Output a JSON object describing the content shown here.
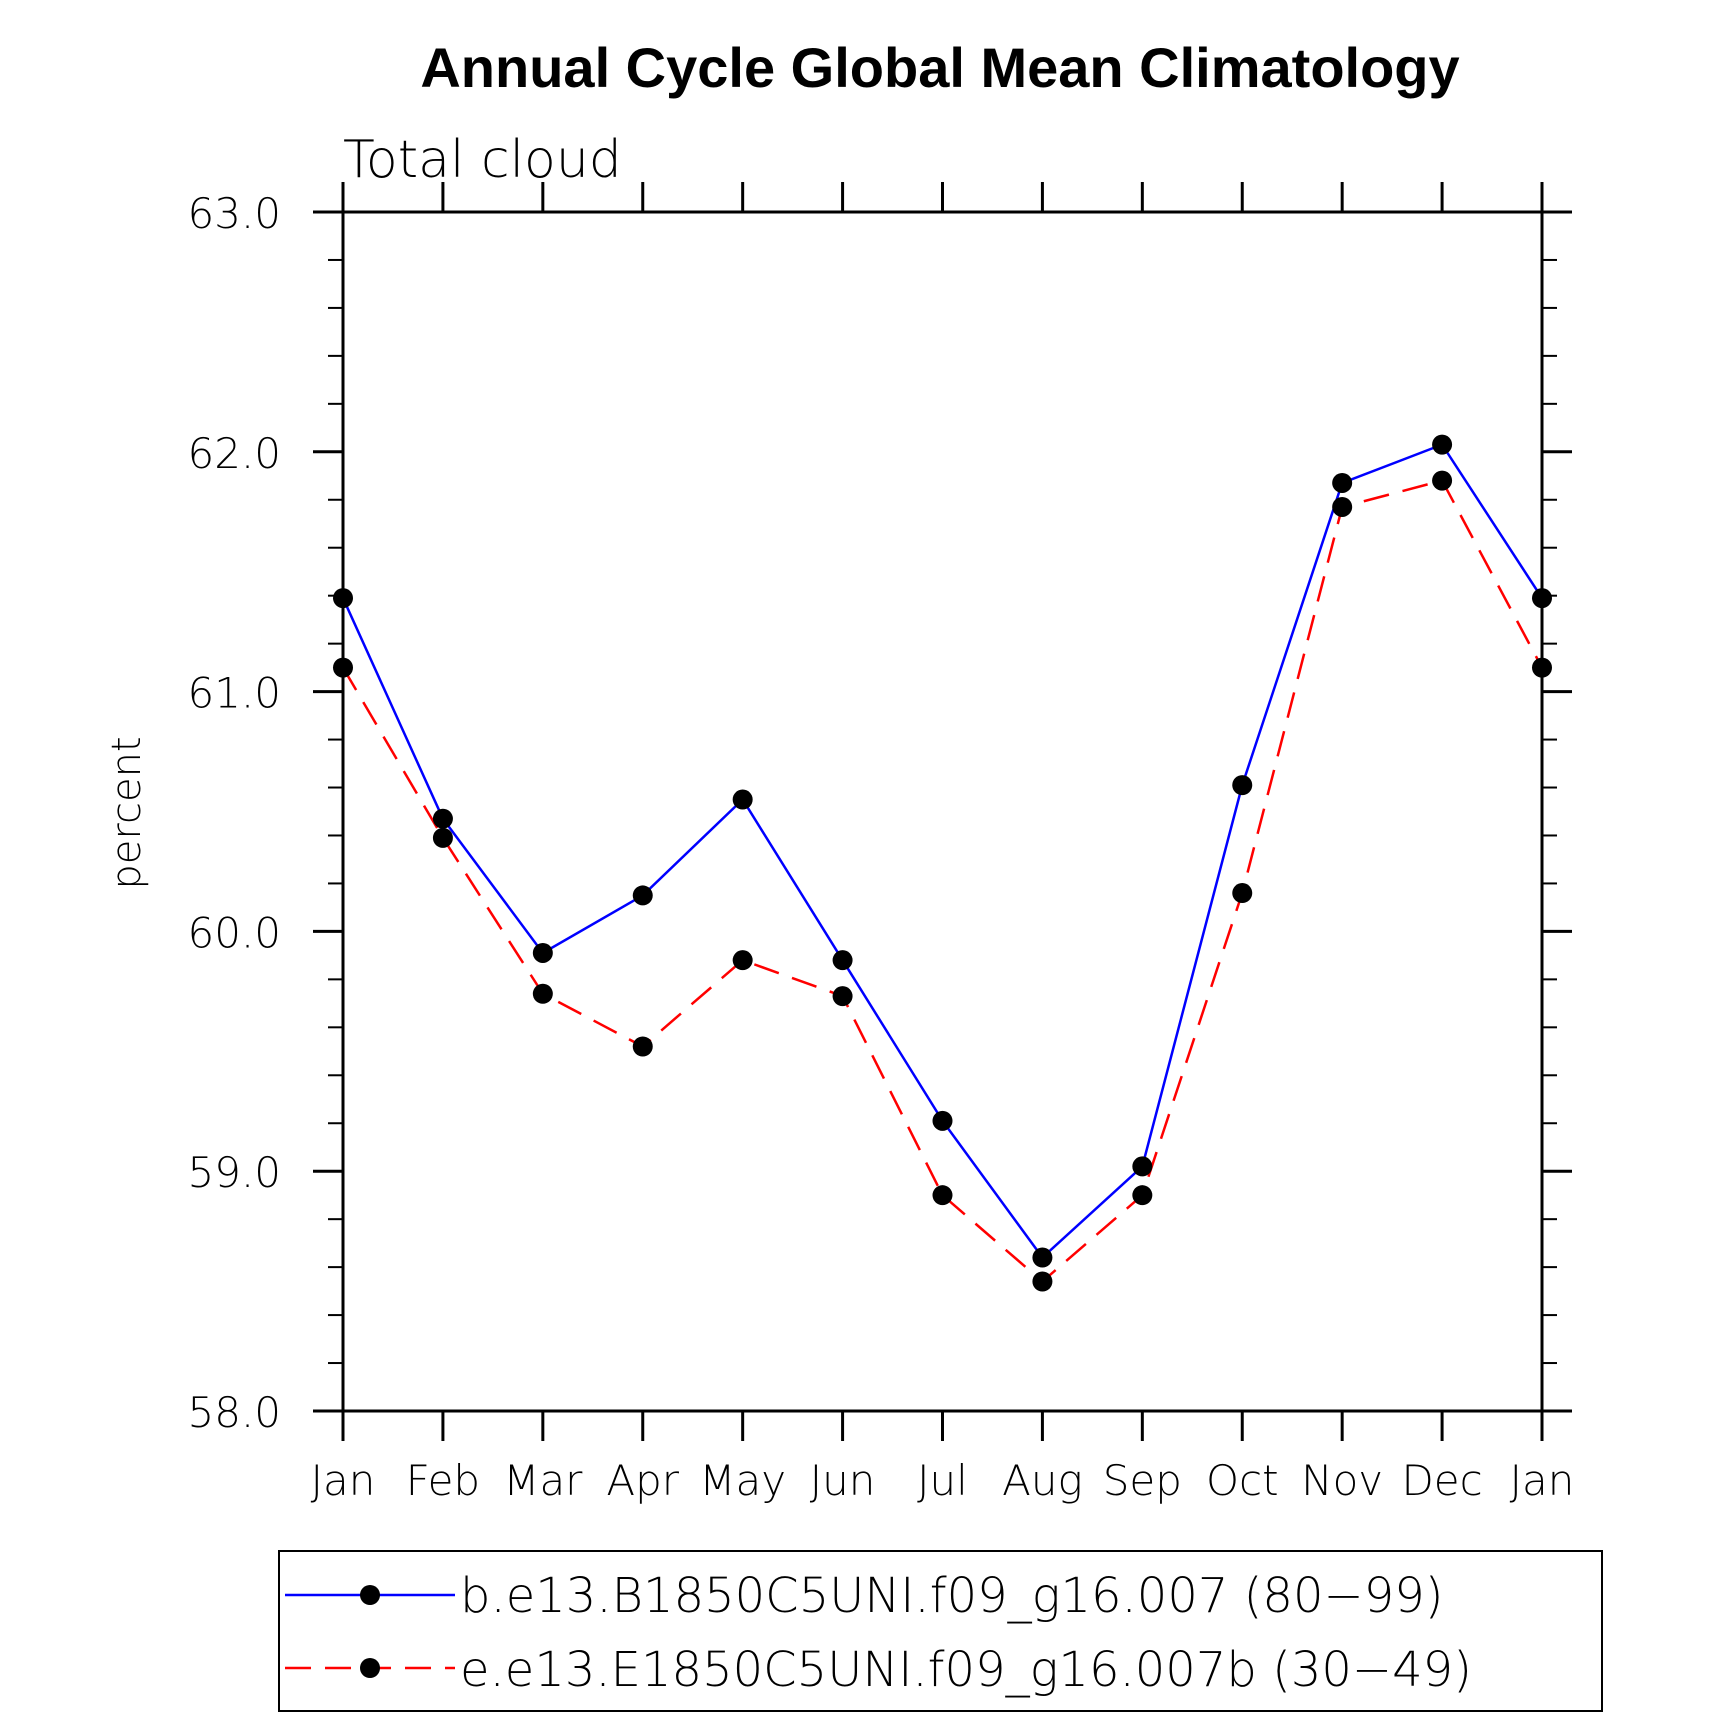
{
  "chart_data": {
    "type": "line",
    "title": "Annual Cycle Global Mean Climatology",
    "subtitle": "Total cloud",
    "xlabel": "",
    "ylabel": "percent",
    "categories": [
      "Jan",
      "Feb",
      "Mar",
      "Apr",
      "May",
      "Jun",
      "Jul",
      "Aug",
      "Sep",
      "Oct",
      "Nov",
      "Dec",
      "Jan"
    ],
    "ylim": [
      58.0,
      63.0
    ],
    "yticks": [
      "58.0",
      "59.0",
      "60.0",
      "61.0",
      "62.0",
      "63.0"
    ],
    "grid": false,
    "legend_position": "bottom",
    "series": [
      {
        "name": "b.e13.B1850C5UNI.f09_g16.007 (80−99)",
        "color": "#0000ff",
        "dash": "solid",
        "marker": "filled-circle",
        "values": [
          61.39,
          60.47,
          59.91,
          60.15,
          60.55,
          59.88,
          59.21,
          58.64,
          59.02,
          60.61,
          61.87,
          62.03,
          61.39
        ]
      },
      {
        "name": "e.e13.E1850C5UNI.f09_g16.007b (30−49)",
        "color": "#ff0000",
        "dash": "dashed",
        "marker": "filled-circle",
        "values": [
          61.1,
          60.39,
          59.74,
          59.52,
          59.88,
          59.73,
          58.9,
          58.54,
          58.9,
          60.16,
          61.77,
          61.88,
          61.1
        ]
      }
    ]
  }
}
